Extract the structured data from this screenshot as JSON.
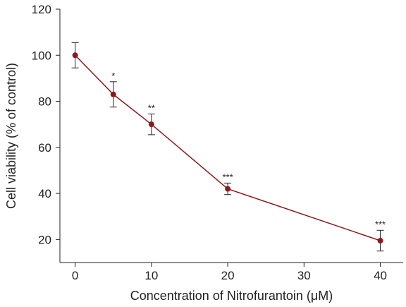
{
  "chart_data": {
    "type": "line",
    "xlabel": "Concentration of Nitrofurantoin (μM)",
    "ylabel": "Cell viability (% of control)",
    "xlim": [
      -2,
      43
    ],
    "ylim": [
      10,
      120
    ],
    "xticks": [
      0,
      10,
      20,
      30,
      40
    ],
    "yticks": [
      20,
      40,
      60,
      80,
      100,
      120
    ],
    "grid": false,
    "series": [
      {
        "color": "#8b1a1a",
        "points": [
          {
            "x": 0,
            "y": 100,
            "err": 5.5,
            "label": ""
          },
          {
            "x": 5,
            "y": 83,
            "err": 5.5,
            "label": "*"
          },
          {
            "x": 10,
            "y": 70,
            "err": 4.5,
            "label": "**"
          },
          {
            "x": 20,
            "y": 42,
            "err": 2.5,
            "label": "***"
          },
          {
            "x": 40,
            "y": 19.5,
            "err": 4.5,
            "label": "***"
          }
        ]
      }
    ]
  }
}
